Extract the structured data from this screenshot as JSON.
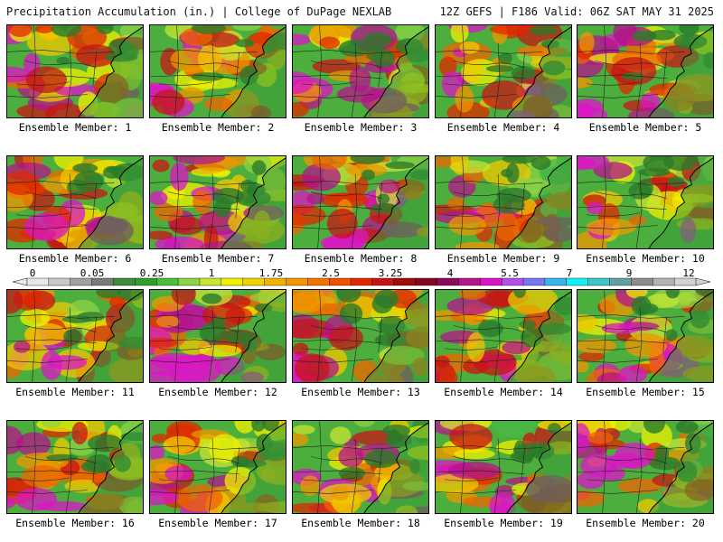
{
  "header": {
    "title": "Precipitation Accumulation (in.) | College of DuPage NEXLAB",
    "run_info": "12Z GEFS | F186 Valid: 06Z SAT MAY 31 2025"
  },
  "panels": [
    {
      "label": "Ensemble Member: 1"
    },
    {
      "label": "Ensemble Member: 2"
    },
    {
      "label": "Ensemble Member: 3"
    },
    {
      "label": "Ensemble Member: 4"
    },
    {
      "label": "Ensemble Member: 5"
    },
    {
      "label": "Ensemble Member: 6"
    },
    {
      "label": "Ensemble Member: 7"
    },
    {
      "label": "Ensemble Member: 8"
    },
    {
      "label": "Ensemble Member: 9"
    },
    {
      "label": "Ensemble Member: 10"
    },
    {
      "label": "Ensemble Member: 11"
    },
    {
      "label": "Ensemble Member: 12"
    },
    {
      "label": "Ensemble Member: 13"
    },
    {
      "label": "Ensemble Member: 14"
    },
    {
      "label": "Ensemble Member: 15"
    },
    {
      "label": "Ensemble Member: 16"
    },
    {
      "label": "Ensemble Member: 17"
    },
    {
      "label": "Ensemble Member: 18"
    },
    {
      "label": "Ensemble Member: 19"
    },
    {
      "label": "Ensemble Member: 20"
    }
  ],
  "legend": {
    "tick_labels": [
      "0",
      "0.05",
      "0.25",
      "1",
      "1.75",
      "2.5",
      "3.25",
      "4",
      "5.5",
      "7",
      "9",
      "12"
    ],
    "colors": [
      "#e8e8e8",
      "#c8c8c8",
      "#a0a0a0",
      "#7a7a7a",
      "#3c8c3c",
      "#2ea02e",
      "#4cbe3c",
      "#8cd246",
      "#c8e632",
      "#f0f000",
      "#f0d200",
      "#f0b400",
      "#f09600",
      "#f07800",
      "#f05000",
      "#e02800",
      "#c81414",
      "#a00a0a",
      "#820a1e",
      "#8c0a5a",
      "#b4148c",
      "#dc14c8",
      "#b450e6",
      "#7878f0",
      "#3cb4f0",
      "#14f0f0",
      "#3cc8c8",
      "#64a0a0",
      "#8c8c8c",
      "#b4b4b4",
      "#d2d2d2"
    ]
  }
}
